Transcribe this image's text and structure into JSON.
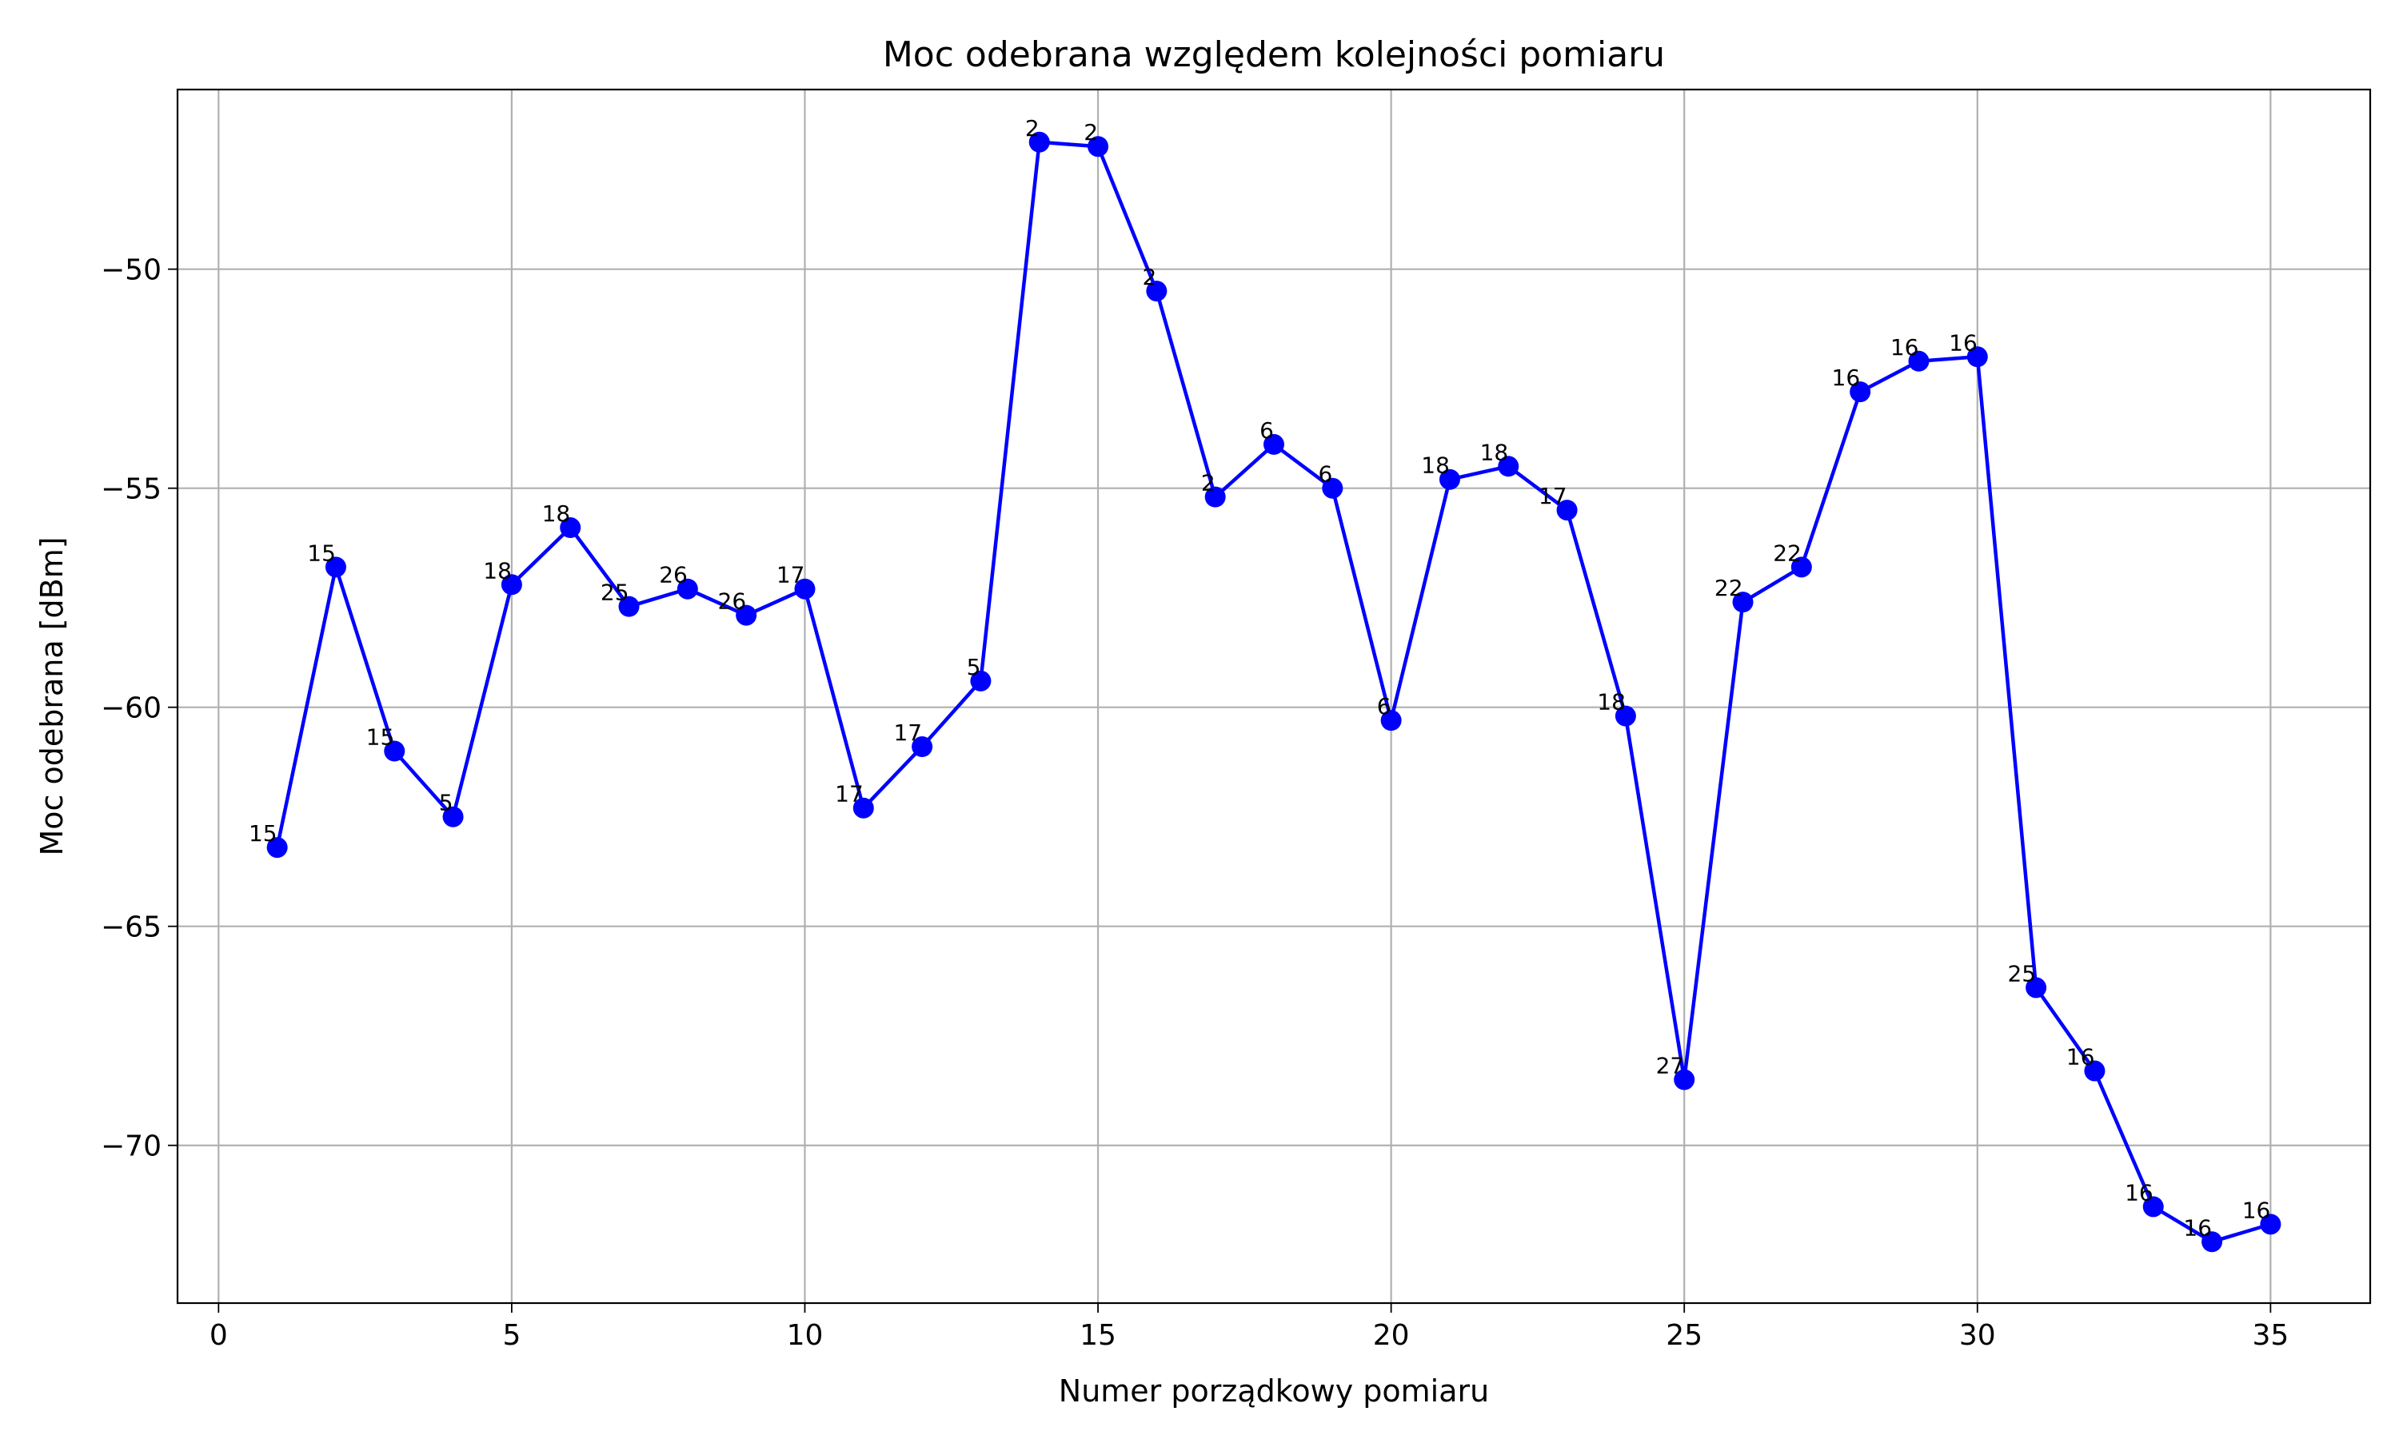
{
  "chart_data": {
    "type": "line",
    "title": "Moc odebrana względem kolejności pomiaru",
    "xlabel": "Numer porządkowy pomiaru",
    "ylabel": "Moc odebrana [dBm]",
    "xlim": [
      -0.7,
      36.7
    ],
    "ylim": [
      -73.6,
      -45.9
    ],
    "xticks": [
      0,
      5,
      10,
      15,
      20,
      25,
      30,
      35
    ],
    "xtick_labels": [
      "0",
      "5",
      "10",
      "15",
      "20",
      "25",
      "30",
      "35"
    ],
    "yticks": [
      -50,
      -55,
      -60,
      -65,
      -70
    ],
    "ytick_labels": [
      "−50",
      "−55",
      "−60",
      "−65",
      "−70"
    ],
    "grid": true,
    "legend": "none",
    "series_color": "#0000ff",
    "series": [
      {
        "x": [
          1,
          2,
          3,
          4,
          5,
          6,
          7,
          8,
          9,
          10,
          11,
          12,
          13,
          14,
          15,
          16,
          17,
          18,
          19,
          20,
          21,
          22,
          23,
          24,
          25,
          26,
          27,
          28,
          29,
          30,
          31,
          32,
          33,
          34,
          35
        ],
        "values": [
          -63.2,
          -56.8,
          -61.0,
          -62.5,
          -57.2,
          -55.9,
          -57.7,
          -57.3,
          -57.9,
          -57.3,
          -62.3,
          -60.9,
          -59.4,
          -47.1,
          -47.2,
          -50.5,
          -55.2,
          -54.0,
          -55.0,
          -60.3,
          -54.8,
          -54.5,
          -55.5,
          -60.2,
          -68.5,
          -57.6,
          -56.8,
          -52.8,
          -52.1,
          -52.0,
          -66.4,
          -68.3,
          -71.4,
          -72.2,
          -71.8
        ],
        "point_labels": [
          "15",
          "15",
          "15",
          "5",
          "18",
          "18",
          "25",
          "26",
          "26",
          "17",
          "17",
          "17",
          "5",
          "2",
          "2",
          "2",
          "2",
          "6",
          "6",
          "6",
          "18",
          "18",
          "17",
          "18",
          "27",
          "22",
          "22",
          "16",
          "16",
          "16",
          "25",
          "16",
          "16",
          "16",
          "16"
        ]
      }
    ]
  }
}
